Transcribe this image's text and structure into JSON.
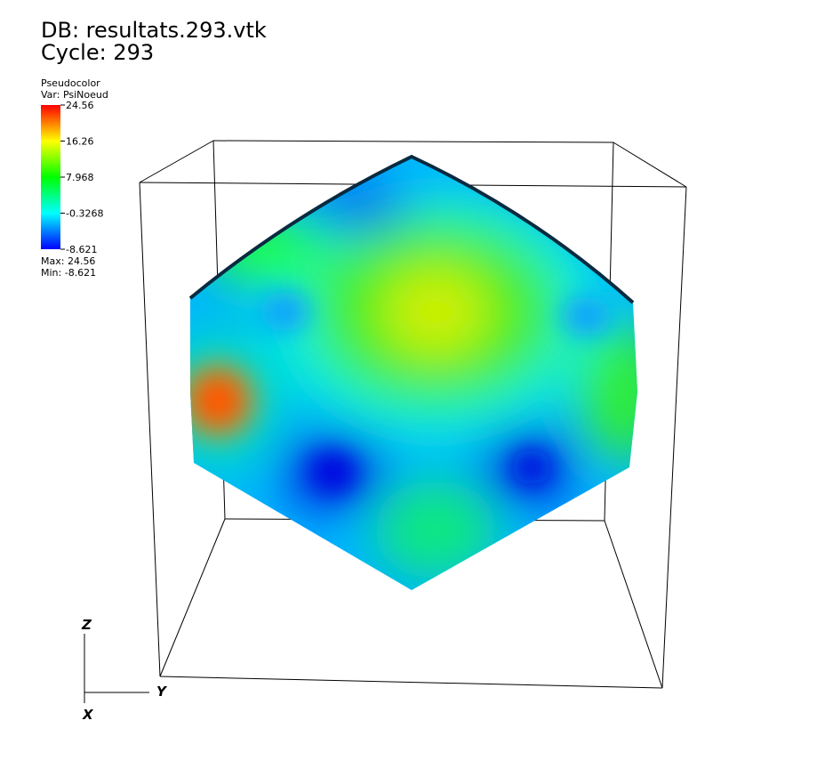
{
  "header": {
    "database": "DB: resultats.293.vtk",
    "cycle": "Cycle: 293"
  },
  "legend": {
    "plot": "Pseudocolor",
    "variable": "Var: PsiNoeud",
    "ticks": [
      "24.56",
      "16.26",
      "7.968",
      "-0.3268",
      "-8.621"
    ],
    "max": "Max:  24.56",
    "min": "Min: -8.621"
  },
  "axes": {
    "z": "Z",
    "y": "Y",
    "x": "X"
  }
}
